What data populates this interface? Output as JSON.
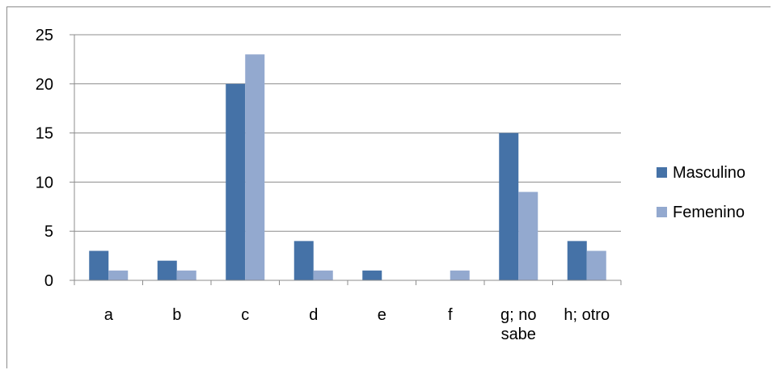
{
  "chart_data": {
    "type": "bar",
    "categories": [
      "a",
      "b",
      "c",
      "d",
      "e",
      "f",
      "g; no sabe",
      "h; otro"
    ],
    "category_lines": [
      [
        "a"
      ],
      [
        "b"
      ],
      [
        "c"
      ],
      [
        "d"
      ],
      [
        "e"
      ],
      [
        "f"
      ],
      [
        "g; no",
        "sabe"
      ],
      [
        "h; otro"
      ]
    ],
    "series": [
      {
        "name": "Masculino",
        "color": "#4572a7",
        "values": [
          3,
          2,
          20,
          4,
          1,
          0,
          15,
          4
        ]
      },
      {
        "name": "Femenino",
        "color": "#93a9cf",
        "values": [
          1,
          1,
          23,
          1,
          0,
          1,
          9,
          3
        ]
      }
    ],
    "ylim": [
      0,
      25
    ],
    "yticks": [
      "0",
      "5",
      "10",
      "15",
      "20",
      "25"
    ],
    "grid": true,
    "legend_position": "right",
    "title": "",
    "xlabel": "",
    "ylabel": ""
  }
}
